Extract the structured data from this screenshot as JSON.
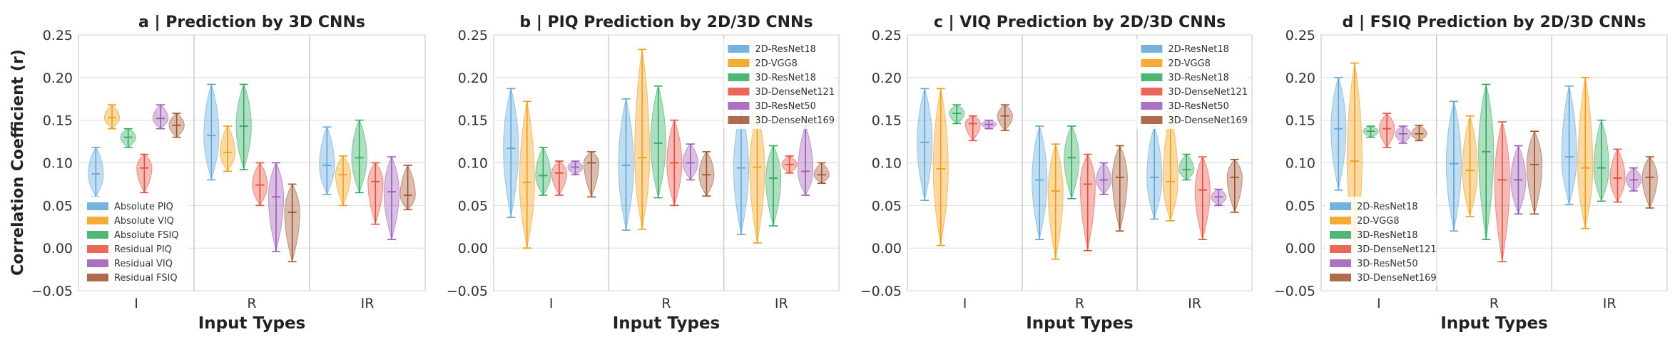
{
  "ylabel": "Correlation Coefficient (r)",
  "yticks": [
    "0.25",
    "0.20",
    "0.15",
    "0.10",
    "0.05",
    "0.00",
    "−0.05"
  ],
  "chart_data": [
    {
      "type": "violin",
      "title": "a | Prediction by 3D CNNs",
      "xlabel": "Input Types",
      "categories": [
        "I",
        "R",
        "IR"
      ],
      "ylim": [
        -0.05,
        0.25
      ],
      "grid": true,
      "legend_position": "lower-left",
      "legend": [
        "Absolute PIQ",
        "Absolute VIQ",
        "Absolute FSIQ",
        "Residual PIQ",
        "Residual VIQ",
        "Residual FSIQ"
      ],
      "series_colors": [
        "#5DA5DA",
        "#F39C12",
        "#2EAA5C",
        "#E74C3C",
        "#9B59B6",
        "#A0522D"
      ],
      "violins": [
        [
          [
            0.06,
            0.118,
            0.087
          ],
          [
            0.14,
            0.168,
            0.153
          ],
          [
            0.118,
            0.14,
            0.13
          ],
          [
            0.065,
            0.11,
            0.094
          ],
          [
            0.14,
            0.168,
            0.152
          ],
          [
            0.13,
            0.158,
            0.144
          ]
        ],
        [
          [
            0.08,
            0.192,
            0.132
          ],
          [
            0.09,
            0.143,
            0.112
          ],
          [
            0.092,
            0.192,
            0.143
          ],
          [
            0.05,
            0.1,
            0.074
          ],
          [
            -0.004,
            0.1,
            0.06
          ],
          [
            -0.016,
            0.075,
            0.042
          ]
        ],
        [
          [
            0.063,
            0.142,
            0.097
          ],
          [
            0.05,
            0.108,
            0.086
          ],
          [
            0.065,
            0.15,
            0.106
          ],
          [
            0.028,
            0.1,
            0.078
          ],
          [
            0.01,
            0.107,
            0.066
          ],
          [
            0.045,
            0.097,
            0.062
          ]
        ]
      ]
    },
    {
      "type": "violin",
      "title": "b | PIQ Prediction by 2D/3D CNNs",
      "xlabel": "Input Types",
      "categories": [
        "I",
        "R",
        "IR"
      ],
      "ylim": [
        -0.05,
        0.25
      ],
      "grid": true,
      "legend_position": "top-right",
      "legend": [
        "2D-ResNet18",
        "2D-VGG8",
        "3D-ResNet18",
        "3D-DenseNet121",
        "3D-ResNet50",
        "3D-DenseNet169"
      ],
      "series_colors": [
        "#5DA5DA",
        "#F39C12",
        "#2EAA5C",
        "#E74C3C",
        "#9B59B6",
        "#A0522D"
      ],
      "violins": [
        [
          [
            0.036,
            0.187,
            0.117
          ],
          [
            0.0,
            0.172,
            0.077
          ],
          [
            0.062,
            0.118,
            0.085
          ],
          [
            0.062,
            0.102,
            0.088
          ],
          [
            0.086,
            0.102,
            0.095
          ],
          [
            0.06,
            0.113,
            0.1
          ]
        ],
        [
          [
            0.021,
            0.175,
            0.097
          ],
          [
            0.022,
            0.233,
            0.106
          ],
          [
            0.059,
            0.19,
            0.123
          ],
          [
            0.05,
            0.15,
            0.1
          ],
          [
            0.08,
            0.122,
            0.1
          ],
          [
            0.061,
            0.113,
            0.086
          ]
        ],
        [
          [
            0.016,
            0.163,
            0.094
          ],
          [
            0.006,
            0.157,
            0.095
          ],
          [
            0.026,
            0.12,
            0.082
          ],
          [
            0.088,
            0.108,
            0.098
          ],
          [
            0.062,
            0.143,
            0.09
          ],
          [
            0.076,
            0.1,
            0.086
          ]
        ]
      ]
    },
    {
      "type": "violin",
      "title": "c | VIQ Prediction by 2D/3D CNNs",
      "xlabel": "Input Types",
      "categories": [
        "I",
        "R",
        "IR"
      ],
      "ylim": [
        -0.05,
        0.25
      ],
      "grid": true,
      "legend_position": "top-right",
      "legend": [
        "2D-ResNet18",
        "2D-VGG8",
        "3D-ResNet18",
        "3D-DenseNet121",
        "3D-ResNet50",
        "3D-DenseNet169"
      ],
      "series_colors": [
        "#5DA5DA",
        "#F39C12",
        "#2EAA5C",
        "#E74C3C",
        "#9B59B6",
        "#A0522D"
      ],
      "violins": [
        [
          [
            0.056,
            0.187,
            0.124
          ],
          [
            0.003,
            0.187,
            0.093
          ],
          [
            0.146,
            0.168,
            0.158
          ],
          [
            0.126,
            0.155,
            0.146
          ],
          [
            0.14,
            0.15,
            0.145
          ],
          [
            0.138,
            0.168,
            0.155
          ]
        ],
        [
          [
            0.01,
            0.143,
            0.08
          ],
          [
            -0.013,
            0.122,
            0.067
          ],
          [
            0.058,
            0.143,
            0.106
          ],
          [
            -0.003,
            0.11,
            0.075
          ],
          [
            0.063,
            0.1,
            0.08
          ],
          [
            0.02,
            0.12,
            0.083
          ]
        ],
        [
          [
            0.034,
            0.143,
            0.083
          ],
          [
            0.032,
            0.16,
            0.078
          ],
          [
            0.08,
            0.11,
            0.092
          ],
          [
            0.01,
            0.107,
            0.068
          ],
          [
            0.05,
            0.069,
            0.06
          ],
          [
            0.042,
            0.104,
            0.083
          ]
        ]
      ]
    },
    {
      "type": "violin",
      "title": "d | FSIQ Prediction by 2D/3D CNNs",
      "xlabel": "Input Types",
      "categories": [
        "I",
        "R",
        "IR"
      ],
      "ylim": [
        -0.05,
        0.25
      ],
      "grid": true,
      "legend_position": "lower-left",
      "legend": [
        "2D-ResNet18",
        "2D-VGG8",
        "3D-ResNet18",
        "3D-DenseNet121",
        "3D-ResNet50",
        "3D-DenseNet169"
      ],
      "series_colors": [
        "#5DA5DA",
        "#F39C12",
        "#2EAA5C",
        "#E74C3C",
        "#9B59B6",
        "#A0522D"
      ],
      "violins": [
        [
          [
            0.068,
            0.2,
            0.14
          ],
          [
            0.0,
            0.217,
            0.102
          ],
          [
            0.13,
            0.143,
            0.137
          ],
          [
            0.118,
            0.158,
            0.14
          ],
          [
            0.123,
            0.143,
            0.134
          ],
          [
            0.126,
            0.144,
            0.134
          ]
        ],
        [
          [
            0.02,
            0.172,
            0.099
          ],
          [
            0.037,
            0.155,
            0.091
          ],
          [
            0.01,
            0.192,
            0.113
          ],
          [
            -0.016,
            0.148,
            0.08
          ],
          [
            0.04,
            0.12,
            0.08
          ],
          [
            0.04,
            0.137,
            0.098
          ]
        ],
        [
          [
            0.051,
            0.19,
            0.107
          ],
          [
            0.023,
            0.2,
            0.094
          ],
          [
            0.055,
            0.15,
            0.094
          ],
          [
            0.054,
            0.116,
            0.082
          ],
          [
            0.067,
            0.094,
            0.08
          ],
          [
            0.047,
            0.107,
            0.083
          ]
        ]
      ]
    }
  ]
}
